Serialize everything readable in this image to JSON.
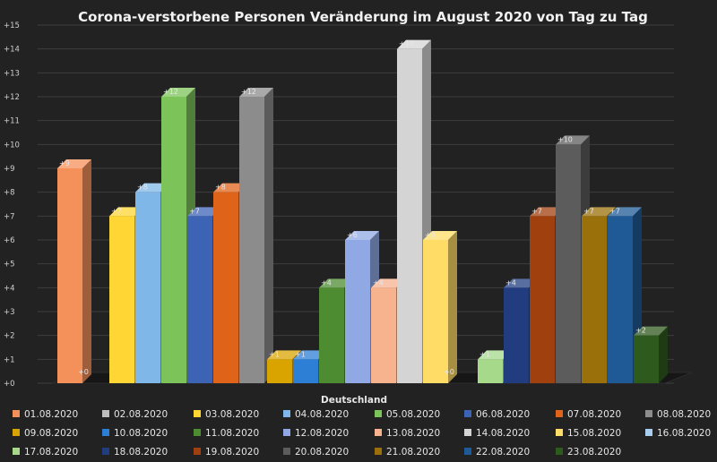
{
  "chart_data": {
    "type": "bar",
    "title": "Corona-verstorbene Personen Veränderung im August 2020 von Tag zu Tag",
    "xlabel": "Deutschland",
    "ylabel": "",
    "ylim": [
      0,
      15
    ],
    "y_ticks": [
      "+0",
      "+1",
      "+2",
      "+3",
      "+4",
      "+5",
      "+6",
      "+7",
      "+8",
      "+9",
      "+10",
      "+11",
      "+12",
      "+13",
      "+14",
      "+15"
    ],
    "legend_position": "bottom",
    "grid": true,
    "series": [
      {
        "name": "01.08.2020",
        "value": 9,
        "label": "+9",
        "color": "#f4905a"
      },
      {
        "name": "02.08.2020",
        "value": 0,
        "label": "+0",
        "color": "#bfbfbf"
      },
      {
        "name": "03.08.2020",
        "value": 7,
        "label": "+7",
        "color": "#ffd633"
      },
      {
        "name": "04.08.2020",
        "value": 8,
        "label": "+8",
        "color": "#7fb8e8"
      },
      {
        "name": "05.08.2020",
        "value": 12,
        "label": "+12",
        "color": "#7cc35a"
      },
      {
        "name": "06.08.2020",
        "value": 7,
        "label": "+7",
        "color": "#3d63b5"
      },
      {
        "name": "07.08.2020",
        "value": 8,
        "label": "+8",
        "color": "#e0631a"
      },
      {
        "name": "08.08.2020",
        "value": 12,
        "label": "+12",
        "color": "#8c8c8c"
      },
      {
        "name": "09.08.2020",
        "value": 1,
        "label": "+1",
        "color": "#d9a400"
      },
      {
        "name": "10.08.2020",
        "value": 1,
        "label": "+1",
        "color": "#2d7fd6"
      },
      {
        "name": "11.08.2020",
        "value": 4,
        "label": "+4",
        "color": "#4e8c32"
      },
      {
        "name": "12.08.2020",
        "value": 6,
        "label": "+6",
        "color": "#90a9e4"
      },
      {
        "name": "13.08.2020",
        "value": 4,
        "label": "+4",
        "color": "#f7b28e"
      },
      {
        "name": "14.08.2020",
        "value": 14,
        "label": "+14",
        "color": "#d4d4d4"
      },
      {
        "name": "15.08.2020",
        "value": 6,
        "label": "+6",
        "color": "#ffdc66"
      },
      {
        "name": "16.08.2020",
        "value": 0,
        "label": "+0",
        "color": "#a9cdee"
      },
      {
        "name": "17.08.2020",
        "value": 1,
        "label": "+1",
        "color": "#a6d98a"
      },
      {
        "name": "18.08.2020",
        "value": 4,
        "label": "+4",
        "color": "#213d80"
      },
      {
        "name": "19.08.2020",
        "value": 7,
        "label": "+7",
        "color": "#a0400f"
      },
      {
        "name": "20.08.2020",
        "value": 10,
        "label": "+10",
        "color": "#5c5c5c"
      },
      {
        "name": "21.08.2020",
        "value": 7,
        "label": "+7",
        "color": "#99700a"
      },
      {
        "name": "22.08.2020",
        "value": 7,
        "label": "+7",
        "color": "#1f5a96"
      },
      {
        "name": "23.08.2020",
        "value": 2,
        "label": "+2",
        "color": "#2f5a1e"
      }
    ]
  }
}
